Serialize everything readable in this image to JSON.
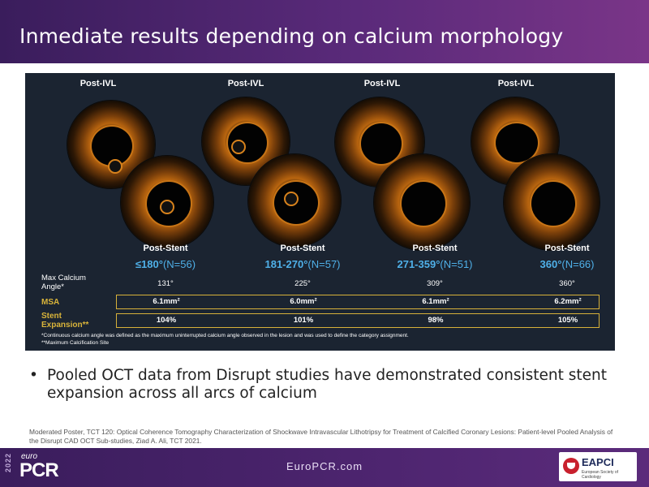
{
  "header": {
    "title": "Inmediate results depending on calcium morphology"
  },
  "panel": {
    "post_ivl_label": "Post-IVL",
    "post_stent_label": "Post-Stent",
    "categories": [
      {
        "arc": "≤180°",
        "n": "(N=56)",
        "max_angle": "131°",
        "msa": "6.1mm²",
        "expansion": "104%"
      },
      {
        "arc": "181-270°",
        "n": "(N=57)",
        "max_angle": "225°",
        "msa": "6.0mm²",
        "expansion": "101%"
      },
      {
        "arc": "271-359°",
        "n": "(N=51)",
        "max_angle": "309°",
        "msa": "6.1mm²",
        "expansion": "98%"
      },
      {
        "arc": "360°",
        "n": "(N=66)",
        "max_angle": "360°",
        "msa": "6.2mm²",
        "expansion": "105%"
      }
    ],
    "row_labels": {
      "max_calcium_1": "Max Calcium",
      "max_calcium_2": "Angle*",
      "msa": "MSA",
      "stent_1": "Stent",
      "stent_2": "Expansion**"
    },
    "footnote_1": "*Continuous calcium angle was defined as the maximum uninterrupted calcium angle observed in the lesion and was used to define the category assignment.",
    "footnote_2": "**Maximum Calcification Site"
  },
  "bullet": {
    "symbol": "•",
    "text": "Pooled OCT data from Disrupt studies have demonstrated consistent stent expansion across all arcs of calcium"
  },
  "reference": "Moderated Poster, TCT 120: Optical Coherence Tomography Characterization of Shockwave Intravascular Lithotripsy for Treatment of Calcified Coronary Lesions: Patient-level Pooled Analysis of the Disrupt CAD OCT Sub-studies, Ziad A. Ali, TCT 2021.",
  "footer": {
    "year": "2022",
    "euro": "euro",
    "brand": "PCR",
    "site": "EuroPCR.com",
    "partner_name": "EAPCI",
    "partner_sub": "European Society of Cardiology"
  },
  "colors": {
    "bar": "#4e2570",
    "accent_blue": "#4fb0e8",
    "gold": "#d7b13a",
    "panel_bg": "#1b2431"
  }
}
